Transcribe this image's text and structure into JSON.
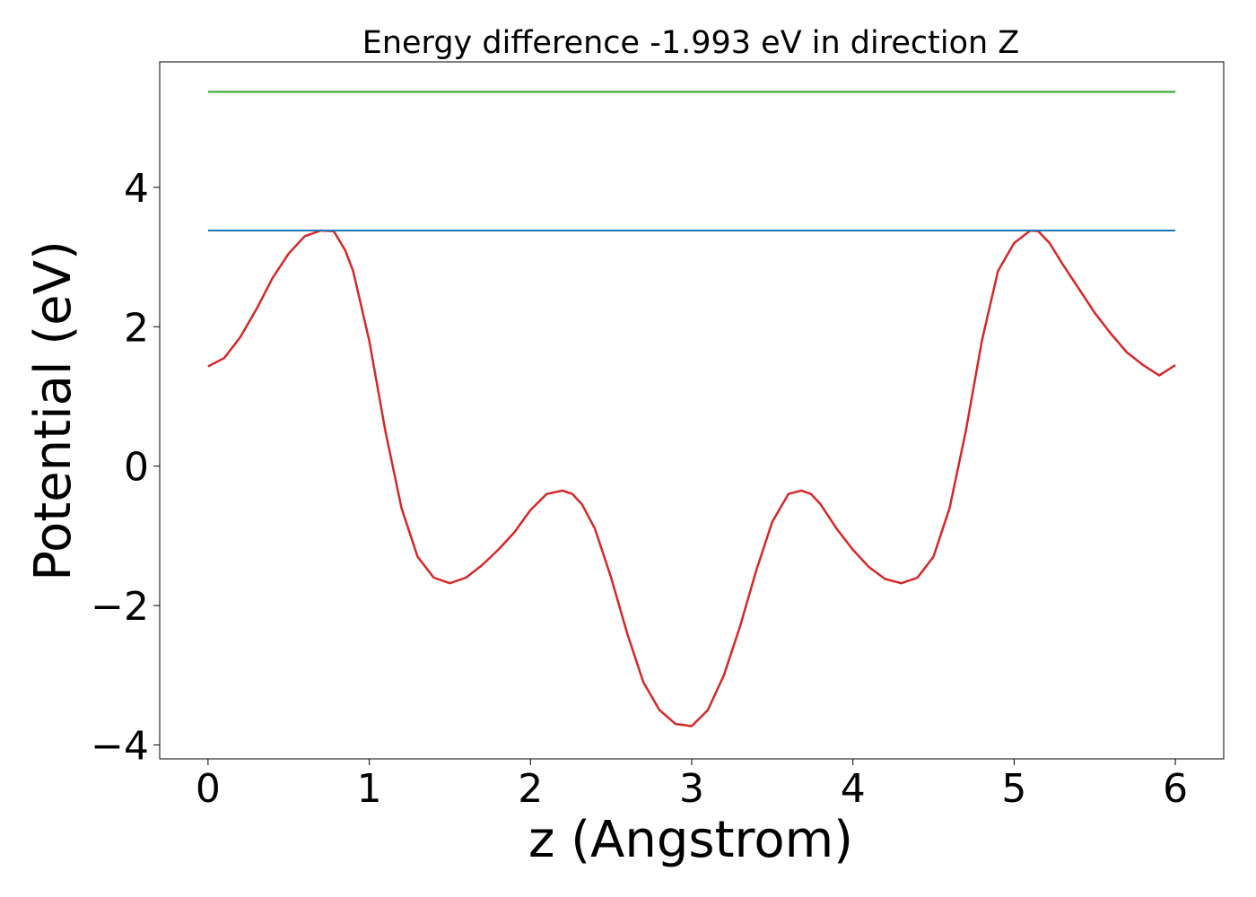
{
  "chart_data": {
    "type": "line",
    "title": "Energy difference -1.993 eV in direction Z",
    "xlabel": "z (Angstrom)",
    "ylabel": "Potential (eV)",
    "xlim": [
      -0.3,
      6.3
    ],
    "ylim": [
      -4.2,
      5.8
    ],
    "xticks": [
      0,
      1,
      2,
      3,
      4,
      5,
      6
    ],
    "xtick_labels": [
      "0",
      "1",
      "2",
      "3",
      "4",
      "5",
      "6"
    ],
    "yticks": [
      -4,
      -2,
      0,
      2,
      4
    ],
    "ytick_labels": [
      "−4",
      "−2",
      "0",
      "2",
      "4"
    ],
    "grid": false,
    "legend": "none",
    "series": [
      {
        "color": "#d62728",
        "x": [
          0,
          0.1,
          0.2,
          0.3,
          0.4,
          0.5,
          0.6,
          0.7,
          0.78,
          0.85,
          0.9,
          1.0,
          1.1,
          1.2,
          1.3,
          1.4,
          1.5,
          1.6,
          1.7,
          1.8,
          1.9,
          2.0,
          2.1,
          2.2,
          2.26,
          2.32,
          2.4,
          2.5,
          2.6,
          2.7,
          2.8,
          2.9,
          3.0,
          3.1,
          3.2,
          3.3,
          3.4,
          3.5,
          3.6,
          3.68,
          3.74,
          3.8,
          3.9,
          4.0,
          4.1,
          4.2,
          4.3,
          4.4,
          4.5,
          4.6,
          4.7,
          4.8,
          4.9,
          5.0,
          5.1,
          5.15,
          5.22,
          5.3,
          5.4,
          5.5,
          5.6,
          5.7,
          5.8,
          5.9,
          6.0
        ],
        "values": [
          1.43,
          1.55,
          1.85,
          2.25,
          2.7,
          3.05,
          3.3,
          3.38,
          3.37,
          3.1,
          2.8,
          1.8,
          0.5,
          -0.6,
          -1.3,
          -1.6,
          -1.68,
          -1.6,
          -1.42,
          -1.2,
          -0.95,
          -0.63,
          -0.4,
          -0.35,
          -0.4,
          -0.55,
          -0.9,
          -1.6,
          -2.4,
          -3.1,
          -3.5,
          -3.7,
          -3.73,
          -3.5,
          -3.0,
          -2.3,
          -1.5,
          -0.8,
          -0.4,
          -0.35,
          -0.4,
          -0.55,
          -0.9,
          -1.2,
          -1.45,
          -1.62,
          -1.68,
          -1.6,
          -1.3,
          -0.6,
          0.5,
          1.8,
          2.8,
          3.2,
          3.38,
          3.37,
          3.2,
          2.9,
          2.55,
          2.2,
          1.9,
          1.63,
          1.45,
          1.3,
          1.45
        ]
      },
      {
        "color": "#1f77b4",
        "x": [
          0,
          6
        ],
        "values": [
          3.38,
          3.38
        ]
      },
      {
        "color": "#2ca02c",
        "x": [
          0,
          6
        ],
        "values": [
          5.37,
          5.37
        ]
      }
    ]
  }
}
